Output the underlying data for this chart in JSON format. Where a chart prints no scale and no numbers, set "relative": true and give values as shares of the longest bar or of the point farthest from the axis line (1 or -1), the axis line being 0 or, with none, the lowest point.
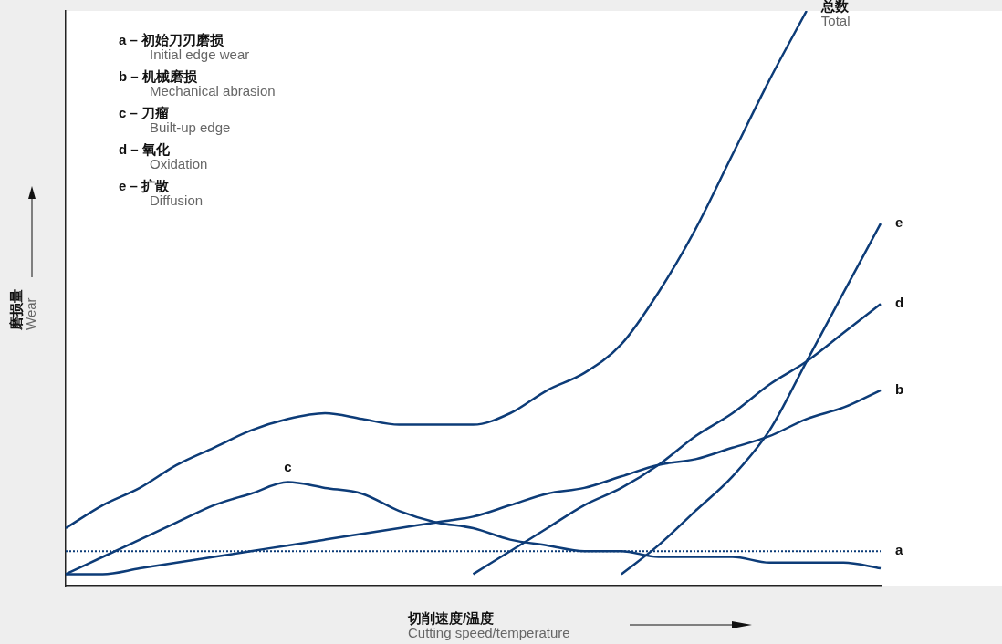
{
  "chart_data": {
    "type": "line",
    "relative": true,
    "legend": false,
    "grid": false,
    "tick_labels": false,
    "xlabel": "切削速度/温度\nCutting speed/temperature",
    "ylabel": "磨损量\nWear",
    "annotations": [
      "a – 初始刀刃磨损",
      "Initial edge wear",
      "b – 机械磨损",
      "Mechanical abrasion",
      "c – 刀瘤",
      "Built-up edge",
      "d – 氧化",
      "Oxidation",
      "e – 扩散",
      "Diffusion"
    ],
    "categories": [
      null,
      null,
      null,
      null,
      null,
      null,
      null,
      null,
      null,
      null,
      null,
      null,
      null,
      null,
      null,
      null,
      null,
      null,
      null,
      null,
      null,
      null,
      null
    ],
    "series": [
      {
        "name": "总数\nTotal",
        "color": "#0d3c78",
        "values": [
          0.1,
          0.14,
          0.17,
          0.21,
          0.24,
          0.27,
          0.29,
          0.3,
          0.29,
          0.28,
          0.28,
          0.28,
          0.3,
          0.34,
          0.37,
          0.42,
          0.51,
          0.62,
          0.75,
          0.88,
          1.0,
          null,
          null
        ]
      },
      {
        "name": "c",
        "color": "#0d3c78",
        "values": [
          0.02,
          0.05,
          0.08,
          0.11,
          0.14,
          0.16,
          0.18,
          0.17,
          0.16,
          0.13,
          0.11,
          0.1,
          0.08,
          0.07,
          0.06,
          0.06,
          0.05,
          0.05,
          0.05,
          0.04,
          0.04,
          0.04,
          0.03
        ]
      },
      {
        "name": "b",
        "color": "#0d3c78",
        "values": [
          0.02,
          0.02,
          0.03,
          0.04,
          0.05,
          0.06,
          0.07,
          0.08,
          0.09,
          0.1,
          0.11,
          0.12,
          0.14,
          0.16,
          0.17,
          0.19,
          0.21,
          0.22,
          0.24,
          0.26,
          0.29,
          0.31,
          0.34
        ]
      },
      {
        "name": "d",
        "color": "#0d3c78",
        "values": [
          null,
          null,
          null,
          null,
          null,
          null,
          null,
          null,
          null,
          null,
          null,
          0.02,
          0.06,
          0.1,
          0.14,
          0.17,
          0.21,
          0.26,
          0.3,
          0.35,
          0.39,
          0.44,
          0.49
        ]
      },
      {
        "name": "e",
        "color": "#0d3c78",
        "values": [
          null,
          null,
          null,
          null,
          null,
          null,
          null,
          null,
          null,
          null,
          null,
          null,
          null,
          null,
          null,
          0.02,
          0.07,
          0.13,
          0.19,
          0.27,
          0.39,
          0.51,
          0.63
        ]
      },
      {
        "name": "a",
        "color": "#0d3c78",
        "line_style": "dotted",
        "values": [
          0.06,
          0.06,
          0.06,
          0.06,
          0.06,
          0.06,
          0.06,
          0.06,
          0.06,
          0.06,
          0.06,
          0.06,
          0.06,
          0.06,
          0.06,
          0.06,
          0.06,
          0.06,
          0.06,
          0.06,
          0.06,
          0.06,
          0.06
        ]
      }
    ]
  }
}
